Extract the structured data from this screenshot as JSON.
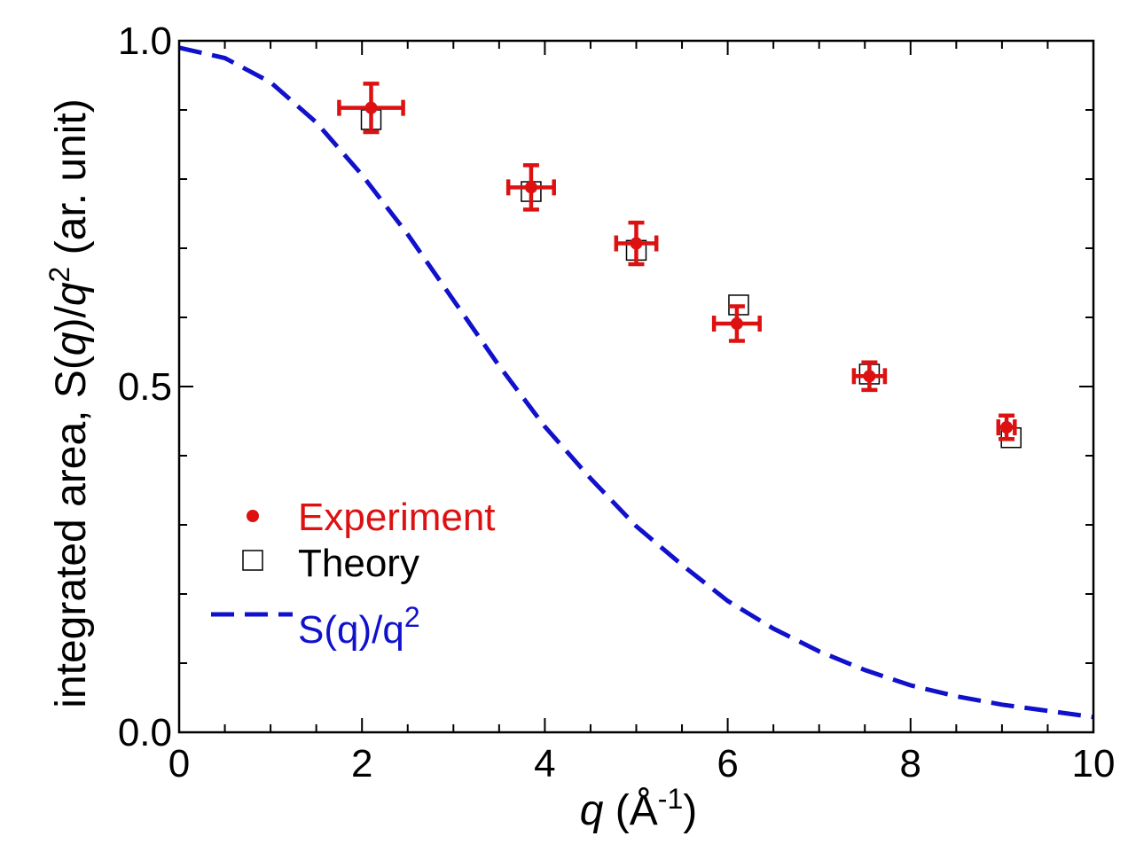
{
  "chart_data": {
    "type": "scatter",
    "xlim": [
      0,
      10
    ],
    "ylim": [
      0,
      1
    ],
    "x_ticks": [
      "0",
      "2",
      "4",
      "6",
      "8",
      "10"
    ],
    "y_ticks": [
      "0.0",
      "0.5",
      "1.0"
    ],
    "xlabel": {
      "var": "q",
      "rest": " (Å",
      "sup": "-1",
      "close": ")"
    },
    "ylabel": {
      "pre": "integrated area, S(",
      "q1": "q",
      "mid": ")/",
      "q2": "q",
      "sup": "2",
      "post": " (ar. unit)"
    },
    "series": [
      {
        "name": "Experiment",
        "color": "#dd1111",
        "marker": "filled-circle",
        "points": [
          {
            "x": 2.1,
            "y": 0.903,
            "xerr": 0.35,
            "yerr": 0.035
          },
          {
            "x": 3.85,
            "y": 0.788,
            "xerr": 0.25,
            "yerr": 0.032
          },
          {
            "x": 5.0,
            "y": 0.707,
            "xerr": 0.22,
            "yerr": 0.03
          },
          {
            "x": 6.1,
            "y": 0.591,
            "xerr": 0.25,
            "yerr": 0.025
          },
          {
            "x": 7.55,
            "y": 0.515,
            "xerr": 0.17,
            "yerr": 0.02
          },
          {
            "x": 9.05,
            "y": 0.441,
            "xerr": 0.09,
            "yerr": 0.017
          }
        ]
      },
      {
        "name": "Theory",
        "color": "#000000",
        "marker": "open-square",
        "points": [
          {
            "x": 2.1,
            "y": 0.886
          },
          {
            "x": 3.85,
            "y": 0.782
          },
          {
            "x": 5.0,
            "y": 0.697
          },
          {
            "x": 6.12,
            "y": 0.618
          },
          {
            "x": 7.55,
            "y": 0.518
          },
          {
            "x": 9.1,
            "y": 0.426
          }
        ]
      },
      {
        "name": "S(q)/q",
        "name_sup": "2",
        "color": "#1111cc",
        "style": "dashed-line",
        "points": [
          {
            "x": 0,
            "y": 0.99
          },
          {
            "x": 0.5,
            "y": 0.975
          },
          {
            "x": 1.0,
            "y": 0.94
          },
          {
            "x": 1.5,
            "y": 0.882
          },
          {
            "x": 2.0,
            "y": 0.806
          },
          {
            "x": 2.5,
            "y": 0.72
          },
          {
            "x": 3.0,
            "y": 0.625
          },
          {
            "x": 3.5,
            "y": 0.53
          },
          {
            "x": 4.0,
            "y": 0.442
          },
          {
            "x": 4.5,
            "y": 0.367
          },
          {
            "x": 5.0,
            "y": 0.298
          },
          {
            "x": 5.5,
            "y": 0.242
          },
          {
            "x": 6.0,
            "y": 0.19
          },
          {
            "x": 6.5,
            "y": 0.15
          },
          {
            "x": 7.0,
            "y": 0.117
          },
          {
            "x": 7.5,
            "y": 0.09
          },
          {
            "x": 8.0,
            "y": 0.068
          },
          {
            "x": 8.5,
            "y": 0.052
          },
          {
            "x": 9.0,
            "y": 0.04
          },
          {
            "x": 9.5,
            "y": 0.031
          },
          {
            "x": 10.0,
            "y": 0.022
          }
        ]
      }
    ]
  }
}
